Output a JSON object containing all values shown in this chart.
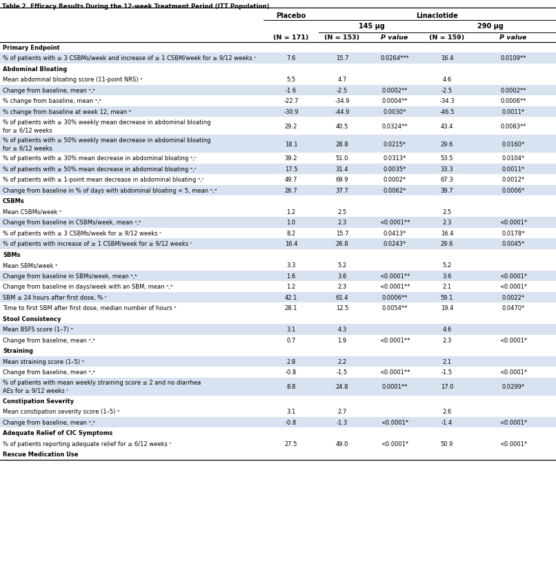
{
  "title": "Table 2. Efficacy Results During the 12-week Treatment Period (ITT Population).",
  "rows": [
    {
      "label": "Primary Endpoint",
      "type": "section"
    },
    {
      "label": "% of patients with ≥ 3 CSBMs/week and increase of ≥ 1 CSBM/week for ≥ 9/12 weeks ᶜ",
      "type": "data",
      "placebo": "7.6",
      "n153": "15.7",
      "p153": "0.0264***",
      "n159": "16.4",
      "p159": "0.0109**",
      "tall": false
    },
    {
      "label": "Abdominal Bloating",
      "type": "section"
    },
    {
      "label": "Mean abdominal bloating score (11-point NRS) ᵃ",
      "type": "data",
      "placebo": "5.5",
      "n153": "4.7",
      "p153": "",
      "n159": "4.6",
      "p159": "",
      "tall": false
    },
    {
      "label": "Change from baseline, mean ᵃ,ᵇ",
      "type": "data",
      "placebo": "-1.6",
      "n153": "-2.5",
      "p153": "0.0002**",
      "n159": "-2.5",
      "p159": "0.0002**",
      "tall": false
    },
    {
      "label": "% change from baseline, mean ᵃ,ᵇ",
      "type": "data",
      "placebo": "-22.7",
      "n153": "-34.9",
      "p153": "0.0004**",
      "n159": "-34.3",
      "p159": "0.0006**",
      "tall": false
    },
    {
      "label": "% change from baseline at week 12, mean ᵇ",
      "type": "data",
      "placebo": "-30.9",
      "n153": "-44.9",
      "p153": "0.0030*",
      "n159": "-46.5",
      "p159": "0.0011*",
      "tall": false
    },
    {
      "label": "% of patients with ≥ 30% weekly mean decrease in abdominal bloating for ≥ 6/12 weeks",
      "type": "data",
      "placebo": "29.2",
      "n153": "40.5",
      "p153": "0.0324**",
      "n159": "43.4",
      "p159": "0.0083**",
      "tall": true
    },
    {
      "label": "% of patients with ≥ 50% weekly mean decrease in abdominal bloating for ≥ 6/12 weeks",
      "type": "data",
      "placebo": "18.1",
      "n153": "28.8",
      "p153": "0.0215*",
      "n159": "29.6",
      "p159": "0.0160*",
      "tall": true
    },
    {
      "label": "% of patients with ≥ 30% mean decrease in abdominal bloating ᵃ,ᶜ",
      "type": "data",
      "placebo": "39.2",
      "n153": "51.0",
      "p153": "0.0313*",
      "n159": "53.5",
      "p159": "0.0104*",
      "tall": false
    },
    {
      "label": "% of patients with ≥ 50% mean decrease in abdominal bloating ᵃ,ᶜ",
      "type": "data",
      "placebo": "17.5",
      "n153": "31.4",
      "p153": "0.0035*",
      "n159": "33.3",
      "p159": "0.0011*",
      "tall": false
    },
    {
      "label": "% of patients with ≥ 1-point mean decrease in abdominal bloating ᵃ,ᶜ",
      "type": "data",
      "placebo": "49.7",
      "n153": "69.9",
      "p153": "0.0002*",
      "n159": "67.3",
      "p159": "0.0012*",
      "tall": false
    },
    {
      "label": "Change from baseline in % of days with abdominal bloating < 5, mean ᵃ,ᵈ",
      "type": "data",
      "placebo": "26.7",
      "n153": "37.7",
      "p153": "0.0062*",
      "n159": "39.7",
      "p159": "0.0006*",
      "tall": false
    },
    {
      "label": "CSBMs",
      "type": "section"
    },
    {
      "label": "Mean CSBMs/week ᵃ",
      "type": "data",
      "placebo": "1.2",
      "n153": "2.5",
      "p153": "",
      "n159": "2.5",
      "p159": "",
      "tall": false
    },
    {
      "label": "Change from baseline in CSBMs/week, mean ᵃ,ᵇ",
      "type": "data",
      "placebo": "1.0",
      "n153": "2.3",
      "p153": "<0.0001**",
      "n159": "2.3",
      "p159": "<0.0001*",
      "tall": false
    },
    {
      "label": "% of patients with ≥ 3 CSBMs/week for ≥ 9/12 weeks ᶜ",
      "type": "data",
      "placebo": "8.2",
      "n153": "15.7",
      "p153": "0.0413*",
      "n159": "16.4",
      "p159": "0.0178*",
      "tall": false
    },
    {
      "label": "% of patients with increase of ≥ 1 CSBM/week for ≥ 9/12 weeks ᶜ",
      "type": "data",
      "placebo": "16.4",
      "n153": "26.8",
      "p153": "0.0243*",
      "n159": "29.6",
      "p159": "0.0045*",
      "tall": false
    },
    {
      "label": "SBMs",
      "type": "section"
    },
    {
      "label": "Mean SBMs/week ᵃ",
      "type": "data",
      "placebo": "3.3",
      "n153": "5.2",
      "p153": "",
      "n159": "5.2",
      "p159": "",
      "tall": false
    },
    {
      "label": "Change from baseline in SBMs/week, mean ᵃ,ᵇ",
      "type": "data",
      "placebo": "1.6",
      "n153": "3.6",
      "p153": "<0.0001**",
      "n159": "3.6",
      "p159": "<0.0001*",
      "tall": false
    },
    {
      "label": "Change from baseline in days/week with an SBM, mean ᵃ,ᵇ",
      "type": "data",
      "placebo": "1.2",
      "n153": "2.3",
      "p153": "<0.0001**",
      "n159": "2.1",
      "p159": "<0.0001*",
      "tall": false
    },
    {
      "label": "SBM ≤ 24 hours after first dose, % ᶜ",
      "type": "data",
      "placebo": "42.1",
      "n153": "61.4",
      "p153": "0.0006**",
      "n159": "59.1",
      "p159": "0.0022*",
      "tall": false
    },
    {
      "label": "Time to first SBM after first dose, median number of hours ᵉ",
      "type": "data",
      "placebo": "28.1",
      "n153": "12.5",
      "p153": "0.0054**",
      "n159": "19.4",
      "p159": "0.0470*",
      "tall": false
    },
    {
      "label": "Stool Consistency",
      "type": "section"
    },
    {
      "label": "Mean BSFS score (1–7) ᵃ",
      "type": "data",
      "placebo": "3.1",
      "n153": "4.3",
      "p153": "",
      "n159": "4.6",
      "p159": "",
      "tall": false
    },
    {
      "label": "Change from baseline, mean ᵃ,ᵇ",
      "type": "data",
      "placebo": "0.7",
      "n153": "1.9",
      "p153": "<0.0001**",
      "n159": "2.3",
      "p159": "<0.0001*",
      "tall": false
    },
    {
      "label": "Straining",
      "type": "section"
    },
    {
      "label": "Mean straining score (1–5) ᵃ",
      "type": "data",
      "placebo": "2.8",
      "n153": "2.2",
      "p153": "",
      "n159": "2.1",
      "p159": "",
      "tall": false
    },
    {
      "label": "Change from baseline, mean ᵃ,ᵇ",
      "type": "data",
      "placebo": "-0.8",
      "n153": "-1.5",
      "p153": "<0.0001**",
      "n159": "-1.5",
      "p159": "<0.0001*",
      "tall": false
    },
    {
      "label": "% of patients with mean weekly straining score ≤ 2 and no diarrhea AEs for ≥ 9/12 weeks ᶜ",
      "type": "data",
      "placebo": "8.8",
      "n153": "24.8",
      "p153": "0.0001**",
      "n159": "17.0",
      "p159": "0.0299*",
      "tall": true
    },
    {
      "label": "Constipation Severity",
      "type": "section"
    },
    {
      "label": "Mean constipation severity score (1–5) ᵃ",
      "type": "data",
      "placebo": "3.1",
      "n153": "2.7",
      "p153": "",
      "n159": "2.6",
      "p159": "",
      "tall": false
    },
    {
      "label": "Change from baseline, mean ᵃ,ᵇ",
      "type": "data",
      "placebo": "-0.8",
      "n153": "-1.3",
      "p153": "<0.0001*",
      "n159": "-1.4",
      "p159": "<0.0001*",
      "tall": false
    },
    {
      "label": "Adequate Relief of CIC Symptoms",
      "type": "section"
    },
    {
      "label": "% of patients reporting adequate relief for ≥ 6/12 weeks ᶜ",
      "type": "data",
      "placebo": "27.5",
      "n153": "49.0",
      "p153": "<0.0001*",
      "n159": "50.9",
      "p159": "<0.0001*",
      "tall": false
    },
    {
      "label": "Rescue Medication Use",
      "type": "section"
    }
  ],
  "bg_light": "#d9e2f0",
  "bg_white": "#ffffff",
  "bg_section": "#ffffff"
}
